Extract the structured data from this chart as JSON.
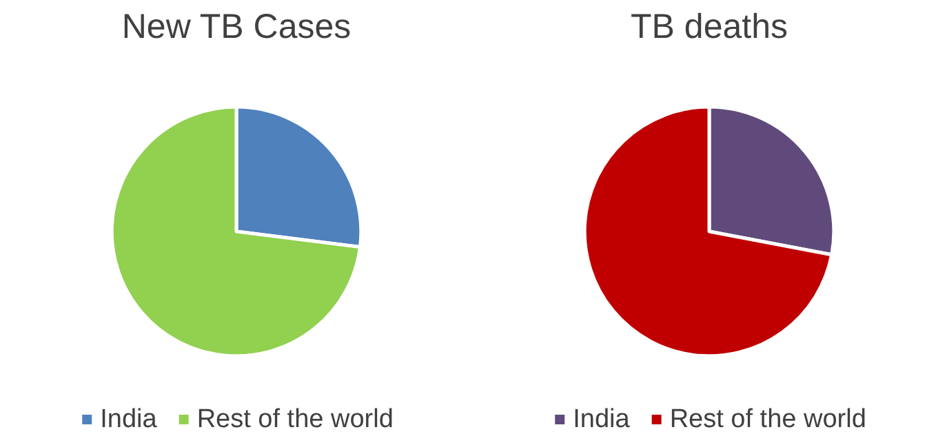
{
  "chart_data": [
    {
      "type": "pie",
      "title": "New TB Cases",
      "categories": [
        "India",
        "Rest of the world"
      ],
      "values": [
        27,
        73
      ],
      "colors": [
        "#4f81bd",
        "#92d050"
      ],
      "legend": "bottom"
    },
    {
      "type": "pie",
      "title": "TB deaths",
      "categories": [
        "India",
        "Rest of the world"
      ],
      "values": [
        28,
        72
      ],
      "colors": [
        "#604a7b",
        "#c00000"
      ],
      "legend": "bottom"
    }
  ]
}
